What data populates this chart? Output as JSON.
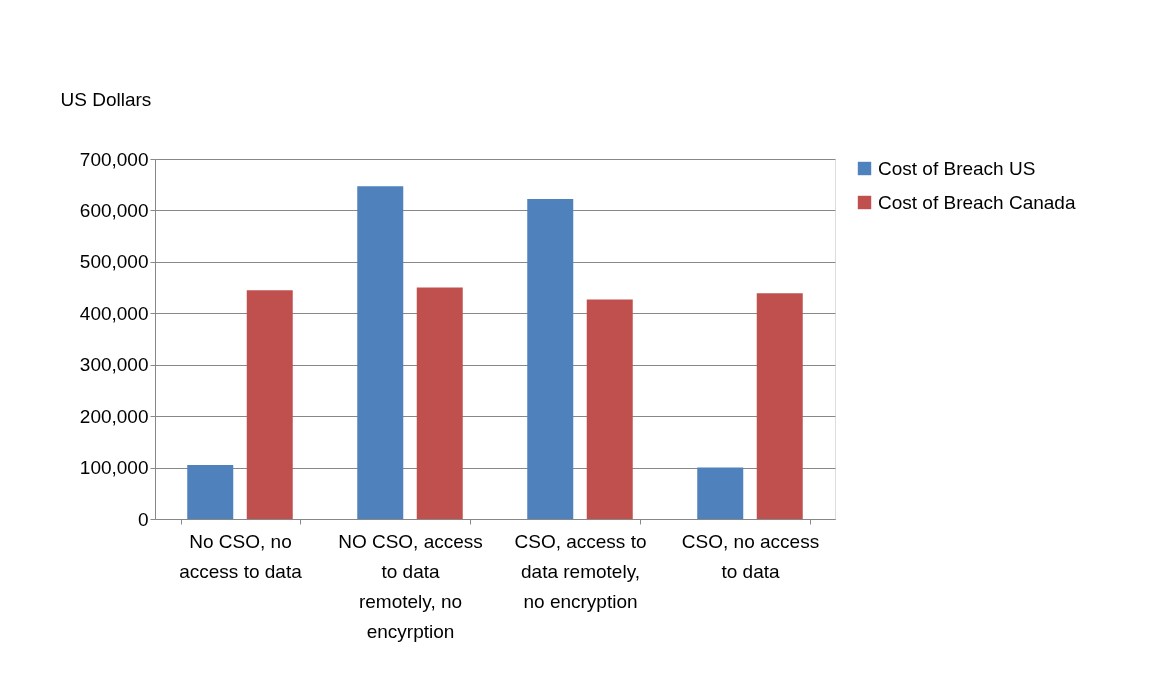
{
  "chart_data": {
    "type": "bar",
    "ylabel": "US Dollars",
    "categories": [
      "No CSO, no access to data",
      "NO CSO, access to data remotely, no encyrption",
      "CSO, access to data remotely, no encryption",
      "CSO, no access to data"
    ],
    "series": [
      {
        "name": "Cost of Breach US",
        "color": "#4f81bd",
        "values": [
          105000,
          647000,
          622000,
          100000
        ]
      },
      {
        "name": "Cost of Breach Canada",
        "color": "#c0504d",
        "values": [
          445000,
          450000,
          427000,
          439000
        ]
      }
    ],
    "ylim": [
      0,
      700000
    ],
    "yticks": [
      0,
      {
        "value": 100000,
        "label": "100,000"
      },
      {
        "value": 200000,
        "label": "200,000"
      },
      {
        "value": 300000,
        "label": "300,000"
      },
      {
        "value": 400000,
        "label": "400,000"
      },
      {
        "value": 500000,
        "label": "500,000"
      },
      {
        "value": 600000,
        "label": "600,000"
      },
      {
        "value": 700000,
        "label": "700,000"
      }
    ],
    "grid": "y",
    "legend": "right"
  }
}
